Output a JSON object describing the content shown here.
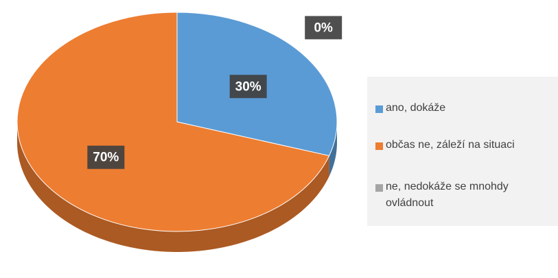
{
  "chart_data": {
    "type": "pie",
    "categories": [
      "ano, dokáže",
      "občas ne, záleží na situaci",
      "ne, nedokáže se mnohdy ovládnout"
    ],
    "values": [
      30,
      70,
      0
    ],
    "value_labels": [
      "30%",
      "70%",
      "0%"
    ],
    "colors": [
      "#5b9bd5",
      "#ed7d31",
      "#a5a5a5"
    ],
    "legend": "right"
  }
}
